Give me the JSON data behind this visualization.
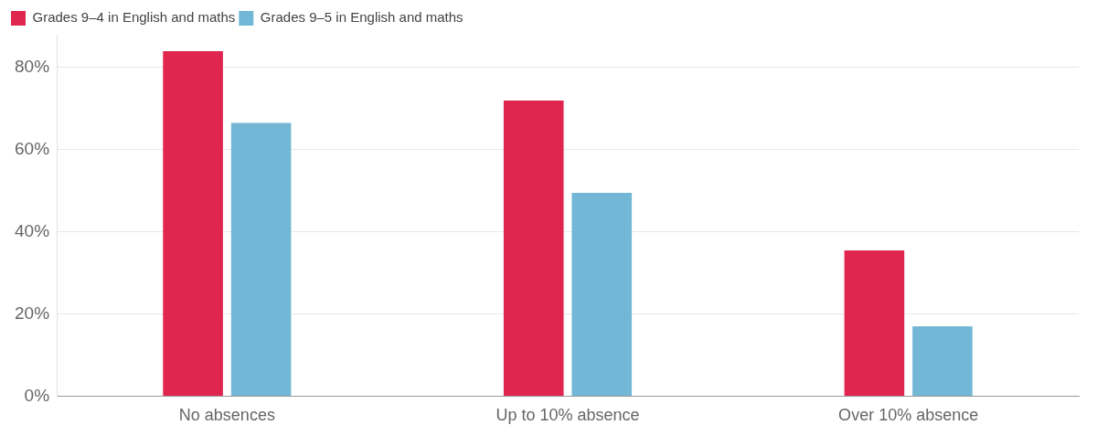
{
  "chart_data": {
    "type": "bar",
    "categories": [
      "No absences",
      "Up to 10% absence",
      "Over 10% absence"
    ],
    "series": [
      {
        "name": "Grades 9–4 in English and maths",
        "color": "#e0254f",
        "values": [
          84,
          72,
          35.5
        ]
      },
      {
        "name": "Grades 9–5 in English and maths",
        "color": "#72b7d6",
        "values": [
          66.5,
          49.5,
          17
        ]
      }
    ],
    "yticks": [
      {
        "value": 0,
        "label": "0%"
      },
      {
        "value": 20,
        "label": "20%"
      },
      {
        "value": 40,
        "label": "40%"
      },
      {
        "value": 60,
        "label": "60%"
      },
      {
        "value": 80,
        "label": "80%"
      }
    ],
    "ylim": [
      0,
      88
    ],
    "grid": "y",
    "legend": "top left"
  }
}
